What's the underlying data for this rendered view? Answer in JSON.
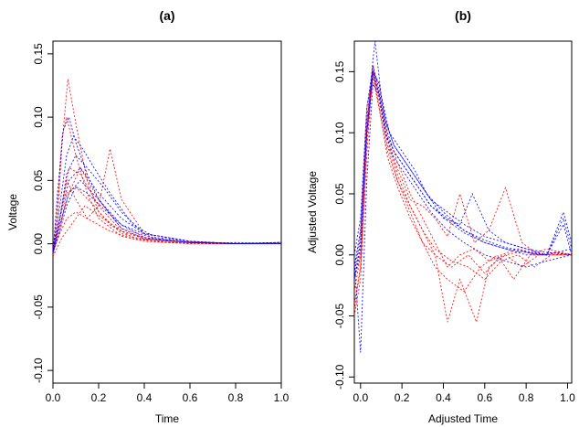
{
  "colors": {
    "group1": "#ff0000",
    "group2": "#0000ff"
  },
  "chart_data": [
    {
      "type": "line",
      "title": "(a)",
      "xlabel": "Time",
      "ylabel": "Voltage",
      "xlim": [
        0.0,
        1.0
      ],
      "ylim": [
        -0.11,
        0.16
      ],
      "xticks": [
        "0.0",
        "0.2",
        "0.4",
        "0.6",
        "0.8",
        "1.0"
      ],
      "yticks": [
        "-0.10",
        "-0.05",
        "0.00",
        "0.05",
        "0.10",
        "0.15"
      ],
      "line_style": "dotted",
      "series": [
        {
          "color": "red",
          "x": [
            0.0,
            0.02,
            0.04,
            0.065,
            0.1,
            0.15,
            0.2,
            0.3,
            0.4,
            0.6,
            0.8,
            1.0
          ],
          "y": [
            -0.008,
            0.02,
            0.08,
            0.13,
            0.095,
            0.05,
            0.025,
            0.008,
            0.003,
            0.001,
            0.0,
            0.001
          ]
        },
        {
          "color": "red",
          "x": [
            0.0,
            0.02,
            0.04,
            0.06,
            0.1,
            0.15,
            0.2,
            0.3,
            0.4,
            0.6,
            0.8,
            1.0
          ],
          "y": [
            -0.006,
            0.03,
            0.085,
            0.1,
            0.07,
            0.04,
            0.02,
            0.006,
            0.002,
            0.0,
            0.001,
            0.0
          ]
        },
        {
          "color": "red",
          "x": [
            0.0,
            0.03,
            0.06,
            0.1,
            0.15,
            0.2,
            0.25,
            0.3,
            0.4,
            0.6,
            0.8,
            1.0
          ],
          "y": [
            -0.005,
            0.02,
            0.05,
            0.035,
            0.02,
            0.03,
            0.075,
            0.035,
            0.008,
            0.002,
            0.0,
            0.001
          ]
        },
        {
          "color": "red",
          "x": [
            0.0,
            0.03,
            0.07,
            0.12,
            0.2,
            0.3,
            0.4,
            0.6,
            0.8,
            1.0
          ],
          "y": [
            -0.01,
            0.02,
            0.06,
            0.055,
            0.03,
            0.01,
            0.004,
            0.001,
            0.0,
            0.0
          ]
        },
        {
          "color": "red",
          "x": [
            0.0,
            0.03,
            0.06,
            0.1,
            0.18,
            0.25,
            0.35,
            0.5,
            0.7,
            1.0
          ],
          "y": [
            -0.008,
            0.01,
            0.04,
            0.045,
            0.03,
            0.015,
            0.005,
            0.001,
            0.0,
            0.001
          ]
        },
        {
          "color": "red",
          "x": [
            0.0,
            0.03,
            0.06,
            0.1,
            0.15,
            0.25,
            0.35,
            0.5,
            0.7,
            1.0
          ],
          "y": [
            -0.006,
            0.008,
            0.02,
            0.025,
            0.02,
            0.01,
            0.004,
            0.001,
            0.0,
            0.0
          ]
        },
        {
          "color": "red",
          "x": [
            0.0,
            0.04,
            0.08,
            0.14,
            0.22,
            0.3,
            0.4,
            0.5,
            0.7,
            1.0
          ],
          "y": [
            -0.01,
            0.005,
            0.015,
            0.03,
            0.02,
            0.01,
            0.005,
            0.002,
            0.001,
            0.0
          ]
        },
        {
          "color": "red",
          "x": [
            0.0,
            0.03,
            0.07,
            0.12,
            0.2,
            0.3,
            0.45,
            0.6,
            0.8,
            1.0
          ],
          "y": [
            -0.007,
            0.015,
            0.04,
            0.06,
            0.035,
            0.012,
            0.004,
            0.001,
            0.0,
            0.0
          ]
        },
        {
          "color": "blue",
          "x": [
            0.0,
            0.02,
            0.045,
            0.07,
            0.1,
            0.15,
            0.2,
            0.3,
            0.4,
            0.6,
            0.8,
            1.0
          ],
          "y": [
            -0.008,
            0.04,
            0.09,
            0.1,
            0.08,
            0.055,
            0.035,
            0.012,
            0.004,
            0.001,
            0.0,
            0.001
          ]
        },
        {
          "color": "blue",
          "x": [
            0.0,
            0.03,
            0.06,
            0.09,
            0.13,
            0.18,
            0.25,
            0.35,
            0.45,
            0.6,
            0.8,
            1.0
          ],
          "y": [
            -0.006,
            0.03,
            0.07,
            0.085,
            0.075,
            0.06,
            0.04,
            0.015,
            0.005,
            0.002,
            0.0,
            0.0
          ]
        },
        {
          "color": "blue",
          "x": [
            0.0,
            0.03,
            0.06,
            0.1,
            0.15,
            0.22,
            0.3,
            0.4,
            0.6,
            0.8,
            1.0
          ],
          "y": [
            -0.005,
            0.02,
            0.055,
            0.07,
            0.06,
            0.045,
            0.025,
            0.008,
            0.002,
            0.0,
            0.001
          ]
        },
        {
          "color": "blue",
          "x": [
            0.0,
            0.03,
            0.07,
            0.12,
            0.2,
            0.3,
            0.4,
            0.6,
            0.8,
            1.0
          ],
          "y": [
            -0.007,
            0.02,
            0.05,
            0.06,
            0.04,
            0.02,
            0.008,
            0.002,
            0.0,
            0.0
          ]
        },
        {
          "color": "blue",
          "x": [
            0.0,
            0.03,
            0.07,
            0.12,
            0.2,
            0.3,
            0.4,
            0.6,
            0.8,
            1.0
          ],
          "y": [
            -0.006,
            0.015,
            0.04,
            0.05,
            0.035,
            0.015,
            0.005,
            0.001,
            0.0,
            0.0
          ]
        },
        {
          "color": "blue",
          "x": [
            0.0,
            0.03,
            0.06,
            0.1,
            0.15,
            0.22,
            0.3,
            0.45,
            0.6,
            0.8,
            1.0
          ],
          "y": [
            -0.006,
            0.01,
            0.03,
            0.045,
            0.04,
            0.028,
            0.015,
            0.004,
            0.001,
            0.0,
            0.0
          ]
        }
      ]
    },
    {
      "type": "line",
      "title": "(b)",
      "xlabel": "Adjusted Time",
      "ylabel": "Adjusted Voltage",
      "xlim": [
        -0.03,
        1.02
      ],
      "ylim": [
        -0.105,
        0.175
      ],
      "xticks": [
        "0.0",
        "0.2",
        "0.4",
        "0.6",
        "0.8",
        "1.0"
      ],
      "yticks": [
        "-0.10",
        "-0.05",
        "0.00",
        "0.05",
        "0.10",
        "0.15"
      ],
      "line_style": "dotted",
      "series": [
        {
          "color": "red",
          "x": [
            -0.03,
            0.0,
            0.03,
            0.06,
            0.09,
            0.13,
            0.18,
            0.24,
            0.3,
            0.36,
            0.42,
            0.48,
            0.55,
            0.62,
            0.7,
            0.78,
            0.86,
            0.94,
            1.02
          ],
          "y": [
            -0.04,
            -0.01,
            0.09,
            0.15,
            0.14,
            0.1,
            0.075,
            0.05,
            0.03,
            0.01,
            -0.01,
            0.0,
            0.005,
            -0.005,
            0.0,
            0.003,
            0.0,
            0.002,
            0.0
          ]
        },
        {
          "color": "red",
          "x": [
            -0.03,
            0.0,
            0.03,
            0.06,
            0.09,
            0.13,
            0.18,
            0.24,
            0.3,
            0.36,
            0.42,
            0.48,
            0.56,
            0.62,
            0.7,
            0.78,
            0.86,
            0.94,
            1.02
          ],
          "y": [
            -0.05,
            -0.02,
            0.08,
            0.155,
            0.13,
            0.095,
            0.065,
            0.04,
            0.02,
            0.0,
            -0.055,
            -0.02,
            -0.055,
            -0.01,
            0.0,
            -0.01,
            0.0,
            0.0,
            0.0
          ]
        },
        {
          "color": "red",
          "x": [
            -0.03,
            0.0,
            0.03,
            0.06,
            0.09,
            0.13,
            0.18,
            0.24,
            0.3,
            0.36,
            0.42,
            0.48,
            0.55,
            0.62,
            0.7,
            0.78,
            0.86,
            0.94,
            1.02
          ],
          "y": [
            -0.03,
            0.0,
            0.1,
            0.15,
            0.125,
            0.09,
            0.07,
            0.045,
            0.04,
            0.03,
            0.015,
            0.05,
            0.01,
            0.02,
            0.055,
            0.01,
            0.0,
            0.002,
            0.0
          ]
        },
        {
          "color": "red",
          "x": [
            -0.03,
            0.0,
            0.03,
            0.06,
            0.09,
            0.13,
            0.18,
            0.24,
            0.3,
            0.36,
            0.42,
            0.5,
            0.58,
            0.66,
            0.74,
            0.82,
            0.9,
            1.02
          ],
          "y": [
            -0.02,
            0.0,
            0.11,
            0.155,
            0.13,
            0.09,
            0.06,
            0.035,
            0.01,
            -0.01,
            -0.02,
            -0.03,
            -0.01,
            0.0,
            -0.02,
            0.0,
            0.005,
            0.0
          ]
        },
        {
          "color": "red",
          "x": [
            -0.03,
            0.0,
            0.03,
            0.06,
            0.09,
            0.13,
            0.18,
            0.24,
            0.3,
            0.36,
            0.44,
            0.52,
            0.6,
            0.68,
            0.76,
            0.84,
            0.92,
            1.02
          ],
          "y": [
            -0.01,
            0.02,
            0.12,
            0.15,
            0.12,
            0.08,
            0.055,
            0.03,
            0.01,
            0.0,
            -0.01,
            0.0,
            -0.015,
            0.0,
            0.005,
            0.0,
            0.0,
            0.001
          ]
        },
        {
          "color": "red",
          "x": [
            -0.03,
            0.0,
            0.03,
            0.06,
            0.09,
            0.13,
            0.18,
            0.24,
            0.3,
            0.36,
            0.44,
            0.52,
            0.6,
            0.68,
            0.76,
            0.84,
            0.92,
            1.02
          ],
          "y": [
            -0.045,
            -0.01,
            0.1,
            0.145,
            0.12,
            0.085,
            0.06,
            0.04,
            0.02,
            0.005,
            -0.005,
            -0.01,
            -0.02,
            -0.005,
            0.0,
            -0.01,
            0.0,
            0.0
          ]
        },
        {
          "color": "blue",
          "x": [
            -0.03,
            0.0,
            0.03,
            0.06,
            0.07,
            0.1,
            0.14,
            0.2,
            0.26,
            0.32,
            0.4,
            0.5,
            0.6,
            0.7,
            0.8,
            0.9,
            0.98,
            1.02
          ],
          "y": [
            -0.01,
            0.02,
            0.1,
            0.16,
            0.175,
            0.13,
            0.1,
            0.085,
            0.07,
            0.05,
            0.035,
            0.02,
            0.01,
            0.005,
            0.002,
            0.0,
            0.035,
            0.01
          ]
        },
        {
          "color": "blue",
          "x": [
            -0.03,
            0.0,
            0.03,
            0.06,
            0.09,
            0.12,
            0.16,
            0.22,
            0.28,
            0.34,
            0.4,
            0.48,
            0.54,
            0.62,
            0.7,
            0.8,
            0.9,
            0.98,
            1.02
          ],
          "y": [
            -0.02,
            0.01,
            0.1,
            0.15,
            0.14,
            0.11,
            0.09,
            0.075,
            0.06,
            0.045,
            0.03,
            0.025,
            0.05,
            0.02,
            0.01,
            0.005,
            0.0,
            0.03,
            0.005
          ]
        },
        {
          "color": "blue",
          "x": [
            -0.03,
            0.0,
            0.03,
            0.06,
            0.09,
            0.12,
            0.16,
            0.22,
            0.28,
            0.34,
            0.42,
            0.5,
            0.6,
            0.7,
            0.8,
            0.9,
            0.98,
            1.02
          ],
          "y": [
            -0.005,
            -0.08,
            0.06,
            0.14,
            0.13,
            0.1,
            0.085,
            0.07,
            0.055,
            0.04,
            0.03,
            0.02,
            0.012,
            0.006,
            0.003,
            0.0,
            0.025,
            0.0
          ]
        },
        {
          "color": "blue",
          "x": [
            -0.03,
            0.0,
            0.03,
            0.06,
            0.09,
            0.12,
            0.16,
            0.22,
            0.28,
            0.34,
            0.42,
            0.5,
            0.6,
            0.7,
            0.8,
            0.9,
            1.02
          ],
          "y": [
            0.0,
            0.03,
            0.12,
            0.155,
            0.135,
            0.105,
            0.085,
            0.07,
            0.055,
            0.04,
            0.028,
            0.018,
            0.01,
            0.005,
            0.0,
            0.0,
            0.005
          ]
        },
        {
          "color": "blue",
          "x": [
            -0.03,
            0.0,
            0.03,
            0.06,
            0.09,
            0.12,
            0.16,
            0.22,
            0.28,
            0.34,
            0.42,
            0.5,
            0.6,
            0.7,
            0.8,
            0.9,
            1.02
          ],
          "y": [
            -0.015,
            0.015,
            0.11,
            0.15,
            0.13,
            0.1,
            0.08,
            0.065,
            0.05,
            0.035,
            0.02,
            0.01,
            0.0,
            -0.005,
            -0.01,
            -0.005,
            0.0
          ]
        },
        {
          "color": "blue",
          "x": [
            -0.03,
            0.0,
            0.03,
            0.06,
            0.09,
            0.12,
            0.16,
            0.22,
            0.28,
            0.34,
            0.42,
            0.5,
            0.6,
            0.7,
            0.8,
            0.9,
            1.02
          ],
          "y": [
            -0.02,
            0.005,
            0.1,
            0.148,
            0.132,
            0.11,
            0.09,
            0.075,
            0.06,
            0.045,
            0.035,
            0.025,
            0.015,
            0.01,
            0.005,
            0.002,
            0.0
          ]
        }
      ]
    }
  ]
}
